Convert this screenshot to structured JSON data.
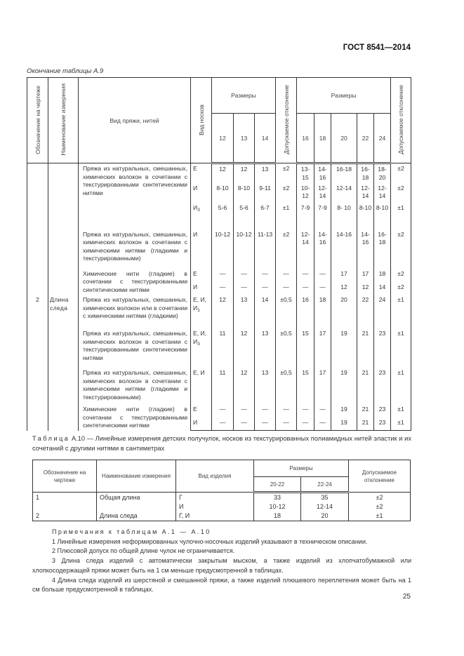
{
  "header": {
    "doc_id": "ГОСТ 8541—2014"
  },
  "table9": {
    "continuation": "Окончание таблицы А.9",
    "headers": {
      "designation": "Обозначение на чертеже",
      "measure_name": "Наименование измерения",
      "yarn_type": "Вид пряжи, нитей",
      "sock_type": "Вид носков",
      "sizes": "Размеры",
      "tolerance": "Допускаемое отклонение",
      "sizes1": [
        "12",
        "13",
        "14"
      ],
      "sizes2": [
        "16",
        "18",
        "20",
        "22",
        "24"
      ]
    },
    "groups": [
      {
        "designation": "",
        "measure": "",
        "desc": "Пряжа из натуральных, смешанных, химических волокон в сочетании с текстурированными синтетическими нитями",
        "rows": [
          {
            "kind": "Е",
            "s1": [
              "12",
              "12",
              "13"
            ],
            "tol1": "±2",
            "s2": [
              "13-15",
              "14-16",
              "16-18",
              "16-18",
              "18-20"
            ],
            "tol2": "±2"
          },
          {
            "kind": "И",
            "s1": [
              "8-10",
              "8-10",
              "9-11"
            ],
            "tol1": "±2",
            "s2": [
              "10-12",
              "12-14",
              "12-14",
              "12-14",
              "12-14"
            ],
            "tol2": "±2"
          },
          {
            "kind": "И3",
            "s1": [
              "5-6",
              "5-6",
              "6-7"
            ],
            "tol1": "±1",
            "s2": [
              "7-9",
              "7-9",
              "8- 10",
              "8-10",
              "8-10"
            ],
            "tol2": "±1"
          }
        ]
      },
      {
        "designation": "",
        "measure": "",
        "desc": "Пряжа из натуральных, смешанных, химических волокон в сочетании с химическими нитями (гладкими и текстурированными)",
        "rows": [
          {
            "kind": "И",
            "s1": [
              "10-12",
              "10-12",
              "11-13"
            ],
            "tol1": "±2",
            "s2": [
              "12-14",
              "14-16",
              "14-16",
              "14-16",
              "16-18"
            ],
            "tol2": "±2"
          }
        ]
      },
      {
        "designation": "",
        "measure": "",
        "desc": "Химические нити (гладкие) в сочетании с текстурированными синтетическими нитями",
        "rows": [
          {
            "kind": "Е",
            "s1": [
              "—",
              "—",
              "—"
            ],
            "tol1": "—",
            "s2": [
              "—",
              "—",
              "17",
              "17",
              "18"
            ],
            "tol2": "±2"
          },
          {
            "kind": "И",
            "s1": [
              "—",
              "—",
              "—"
            ],
            "tol1": "—",
            "s2": [
              "—",
              "—",
              "12",
              "12",
              "14"
            ],
            "tol2": "±2"
          }
        ]
      },
      {
        "designation": "2",
        "measure": "Длина следа",
        "desc": "Пряжа из натуральных, смешанных, химических волокон или в сочетании с химическими нитями (гладкими)",
        "rows": [
          {
            "kind": "Е, И, И1",
            "s1": [
              "12",
              "13",
              "14"
            ],
            "tol1": "±0,5",
            "s2": [
              "16",
              "18",
              "20",
              "22",
              "24"
            ],
            "tol2": "±1"
          }
        ]
      },
      {
        "designation": "",
        "measure": "",
        "desc": "Пряжа из натуральных, смешанных, химических волокон в сочетании с текстурированными синтетическими нитями",
        "rows": [
          {
            "kind": "Е, И, И3",
            "s1": [
              "11",
              "12",
              "13"
            ],
            "tol1": "±0,5",
            "s2": [
              "15",
              "17",
              "19",
              "21",
              "23"
            ],
            "tol2": "±1"
          }
        ]
      },
      {
        "designation": "",
        "measure": "",
        "desc": "Пряжа из натуральных, смешанных, химических волокон в сочетании с химическими нитями (гладкими и текстурированными)",
        "rows": [
          {
            "kind": "Е, И",
            "s1": [
              "11",
              "12",
              "13"
            ],
            "tol1": "±0,5",
            "s2": [
              "15",
              "17",
              "19",
              "21",
              "23"
            ],
            "tol2": "±1"
          }
        ]
      },
      {
        "designation": "",
        "measure": "",
        "desc": "Химические нити (гладкие) в сочетании с текстурированными синтетическими нитями",
        "rows": [
          {
            "kind": "Е",
            "s1": [
              "—",
              "—",
              "—"
            ],
            "tol1": "—",
            "s2": [
              "—",
              "—",
              "19",
              "21",
              "23"
            ],
            "tol2": "±1"
          },
          {
            "kind": "И",
            "s1": [
              "—",
              "—",
              "—"
            ],
            "tol1": "—",
            "s2": [
              "—",
              "—",
              "19",
              "21",
              "23"
            ],
            "tol2": "±1"
          }
        ]
      }
    ]
  },
  "table10": {
    "caption_label": "Таблица",
    "caption": "А.10 — Линейные измерения детских получулок, носков из текстурированных полиамидных нитей эластик и их сочетаний с другими нитями в сантиметрах",
    "headers": {
      "designation": "Обозначение на чертеже",
      "measure_name": "Наименование измерения",
      "product_type": "Вид изделия",
      "sizes": "Размеры",
      "size_cols": [
        "20-22",
        "22-24"
      ],
      "tolerance": "Допускаемое отклонение"
    },
    "rows": [
      {
        "designation": "1",
        "measure": "Общая длина",
        "product": "Г",
        "v": [
          "33",
          "35"
        ],
        "tol": "±2"
      },
      {
        "designation": "",
        "measure": "",
        "product": "И",
        "v": [
          "10-12",
          "12-14"
        ],
        "tol": "±2"
      },
      {
        "designation": "2",
        "measure": "Длина следа",
        "product": "Г, И",
        "v": [
          "18",
          "20"
        ],
        "tol": "±1"
      }
    ]
  },
  "notes": {
    "title": "Примечания к таблицам А.1 — А.10",
    "items": [
      "1 Линейные измерения неформированных чулочно-носочных изделий указывают в техническом описании.",
      "2 Плюсовой допуск по общей длине чулок не ограничивается.",
      "3 Длина следа изделий с автоматически закрытым мыском, а также изделий из хлопчатобумажной или хлопкосодержащей пряжи может быть на 1 см меньше предусмотренной в таблицах.",
      "4 Длина следа изделий из шерстяной и смешанной пряжи, а также изделий плюшевого переплетения может быть на 1 см больше предусмотренной в таблицах."
    ]
  },
  "footer": {
    "page_number": "25"
  }
}
